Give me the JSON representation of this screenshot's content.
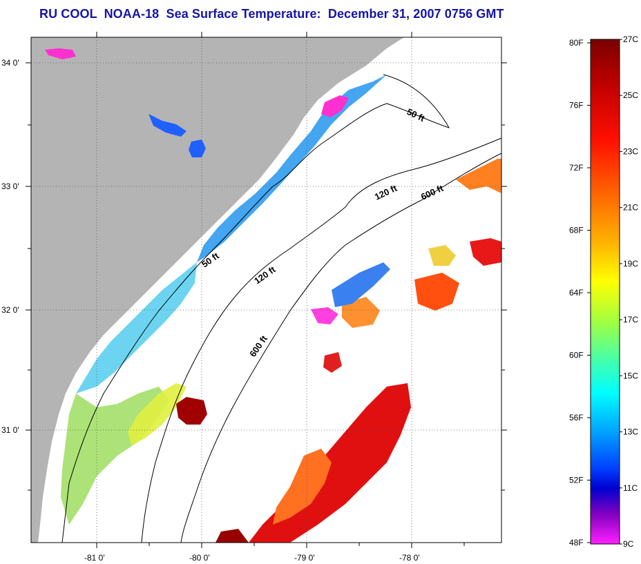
{
  "title": "RU COOL  NOAA-18  Sea Surface Temperature:  December 31, 2007 0756 GMT",
  "map": {
    "lat_ticks": [
      "34 0'",
      "33 0'",
      "32 0'",
      "31 0'"
    ],
    "lon_ticks": [
      "-81 0'",
      "-80 0'",
      "-79 0'",
      "-78 0'"
    ],
    "contours": [
      {
        "label": "50 ft"
      },
      {
        "label": "120 ft"
      },
      {
        "label": "600 ft"
      },
      {
        "label": "50 ft"
      },
      {
        "label": "120 ft"
      },
      {
        "label": "600 ft"
      }
    ],
    "colors": {
      "land": "#b4b4b4",
      "ocean_nodata": "#ffffff"
    }
  },
  "colorbar": {
    "fahrenheit": [
      "80F",
      "76F",
      "72F",
      "68F",
      "64F",
      "60F",
      "56F",
      "52F",
      "48F"
    ],
    "celsius": [
      "27C",
      "25C",
      "23C",
      "21C",
      "19C",
      "17C",
      "15C",
      "13C",
      "11C",
      "9C"
    ],
    "gradient_top_to_bottom": [
      "#7a0000",
      "#c00000",
      "#ff1000",
      "#ff6000",
      "#ffb000",
      "#ffff00",
      "#a0ff40",
      "#40ffb0",
      "#00ffff",
      "#00a0ff",
      "#0040ff",
      "#0000d0",
      "#8000c0",
      "#ff20ff"
    ]
  }
}
